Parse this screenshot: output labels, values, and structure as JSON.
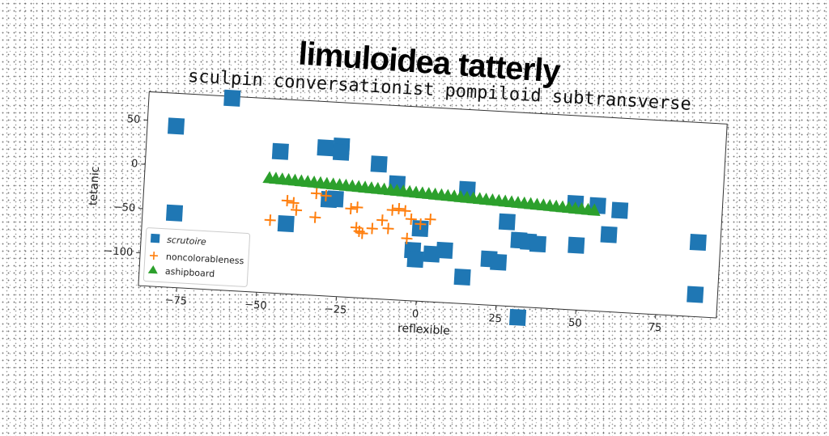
{
  "header": {
    "title": "limuloidea tatterly"
  },
  "chart_data": {
    "type": "scatter",
    "title": "sculpin conversationist pompiloid subtransverse",
    "xlabel": "reflexible",
    "ylabel": "tetanic",
    "xlim": [
      -87,
      94
    ],
    "ylim": [
      -137,
      82
    ],
    "xticks": [
      -75,
      -50,
      -25,
      0,
      25,
      50,
      75
    ],
    "yticks": [
      50,
      0,
      -50,
      -100
    ],
    "legend_position": "lower-left",
    "series": [
      {
        "name": "scrutoire",
        "marker": "square",
        "color": "#1f77b4",
        "points": [
          [
            -61,
            80
          ],
          [
            -78,
            45
          ],
          [
            -45,
            23
          ],
          [
            -31,
            30
          ],
          [
            -26,
            33
          ],
          [
            -26,
            26
          ],
          [
            -14,
            15
          ],
          [
            -8,
            -6
          ],
          [
            14,
            -8
          ],
          [
            -27,
            -27
          ],
          [
            -29,
            -28
          ],
          [
            -77,
            -53
          ],
          [
            -42,
            -58
          ],
          [
            0,
            -55
          ],
          [
            -2,
            -80
          ],
          [
            -1,
            -90
          ],
          [
            4,
            -83
          ],
          [
            8,
            -78
          ],
          [
            14,
            -107
          ],
          [
            22,
            -85
          ],
          [
            25,
            -88
          ],
          [
            27,
            -42
          ],
          [
            31,
            -62
          ],
          [
            34,
            -63
          ],
          [
            37,
            -65
          ],
          [
            48,
            -17
          ],
          [
            49,
            -64
          ],
          [
            55,
            -18
          ],
          [
            59,
            -50
          ],
          [
            62,
            -22
          ],
          [
            87,
            -53
          ],
          [
            87,
            -112
          ],
          [
            32,
            -149
          ]
        ]
      },
      {
        "name": "noncolorableness",
        "marker": "plus",
        "color": "#ff7f0e",
        "points": [
          [
            -47,
            -55
          ],
          [
            -42,
            -32
          ],
          [
            -40,
            -34
          ],
          [
            -39,
            -42
          ],
          [
            -33,
            -49
          ],
          [
            -33,
            -22
          ],
          [
            -30,
            -24
          ],
          [
            -22,
            -37
          ],
          [
            -20,
            -35
          ],
          [
            -20,
            -58
          ],
          [
            -19,
            -62
          ],
          [
            -18,
            -64
          ],
          [
            -15,
            -58
          ],
          [
            -12,
            -48
          ],
          [
            -10,
            -57
          ],
          [
            -9,
            -36
          ],
          [
            -7,
            -34
          ],
          [
            -5,
            -36
          ],
          [
            -4,
            -67
          ],
          [
            -3,
            -45
          ],
          [
            0,
            -50
          ],
          [
            3,
            -44
          ]
        ]
      },
      {
        "name": "ashipboard",
        "marker": "triangle",
        "color": "#2ca02c",
        "x_start": -48,
        "x_end": 54,
        "y_start": -8,
        "y_end": -24,
        "count": 52
      }
    ]
  }
}
